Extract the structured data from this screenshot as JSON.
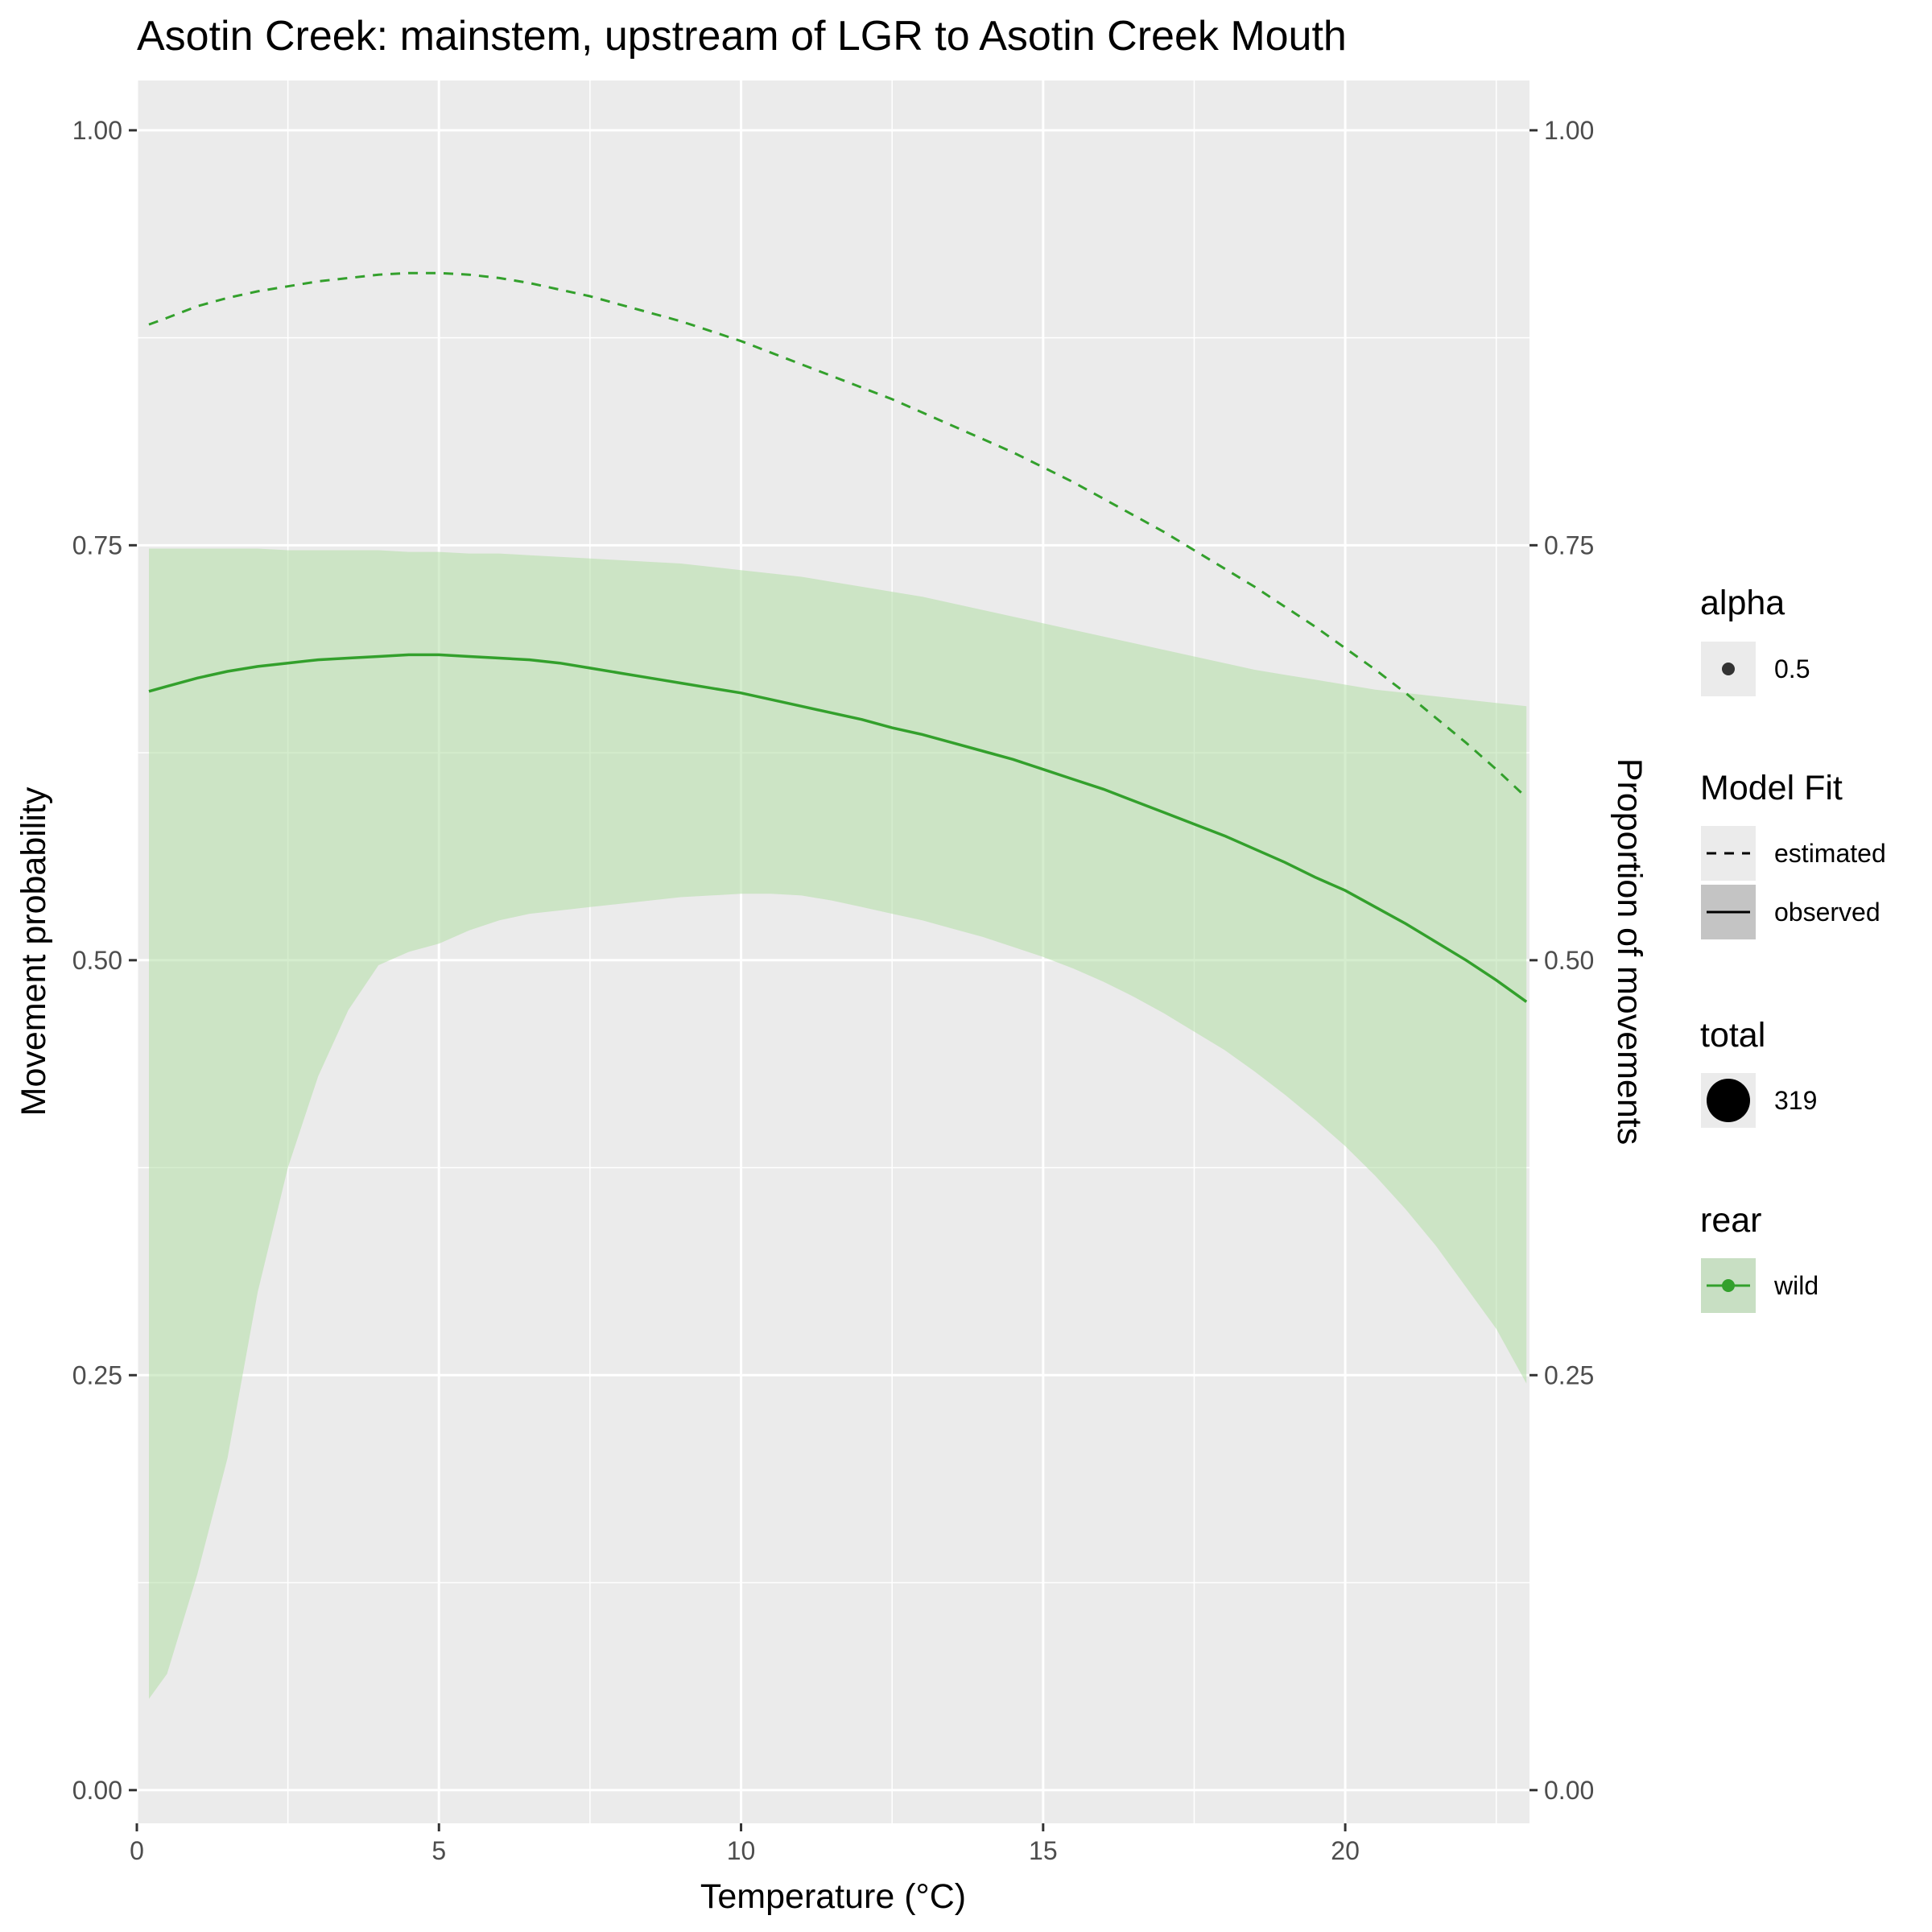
{
  "chart_data": {
    "type": "line",
    "title": "Asotin Creek: mainstem, upstream of LGR to Asotin Creek Mouth",
    "xlabel": "Temperature (°C)",
    "ylabel": "Movement probability",
    "ylabel_right": "Proportion of movements",
    "xlim": [
      0,
      23.05
    ],
    "ylim": [
      -0.02,
      1.03
    ],
    "x_ticks": [
      0,
      5,
      10,
      15,
      20
    ],
    "x_tick_labels": [
      "0",
      "5",
      "10",
      "15",
      "20"
    ],
    "y_ticks": [
      0,
      0.25,
      0.5,
      0.75,
      1
    ],
    "y_tick_labels": [
      "0.00",
      "0.25",
      "0.50",
      "0.75",
      "1.00"
    ],
    "y_ticks_right": [
      0,
      0.25,
      0.5,
      0.75,
      1
    ],
    "y_tick_labels_right": [
      "0.00",
      "0.25",
      "0.50",
      "0.75",
      "1.00"
    ],
    "grid": true,
    "legend_position": "right",
    "colors": {
      "panel": "#ebebeb",
      "grid": "#ffffff",
      "series": "#33a02c",
      "ribbon": "#b2dfa5"
    },
    "series": [
      {
        "name": "observed",
        "style": "solid",
        "x": [
          0.2,
          0.5,
          1,
          1.5,
          2,
          2.5,
          3,
          3.5,
          4,
          4.5,
          5,
          5.5,
          6,
          6.5,
          7,
          7.5,
          8,
          8.5,
          9,
          9.5,
          10,
          10.5,
          11,
          11.5,
          12,
          12.5,
          13,
          13.5,
          14,
          14.5,
          15,
          15.5,
          16,
          16.5,
          17,
          17.5,
          18,
          18.5,
          19,
          19.5,
          20,
          20.5,
          21,
          21.5,
          22,
          22.5,
          23
        ],
        "y": [
          0.662,
          0.665,
          0.67,
          0.674,
          0.677,
          0.679,
          0.681,
          0.682,
          0.683,
          0.684,
          0.684,
          0.683,
          0.682,
          0.681,
          0.679,
          0.676,
          0.673,
          0.67,
          0.667,
          0.664,
          0.661,
          0.657,
          0.653,
          0.649,
          0.645,
          0.64,
          0.636,
          0.631,
          0.626,
          0.621,
          0.615,
          0.609,
          0.603,
          0.596,
          0.589,
          0.582,
          0.575,
          0.567,
          0.559,
          0.55,
          0.542,
          0.532,
          0.522,
          0.511,
          0.5,
          0.488,
          0.475
        ],
        "ribbon_upper": [
          0.748,
          0.748,
          0.748,
          0.748,
          0.748,
          0.747,
          0.747,
          0.747,
          0.747,
          0.746,
          0.746,
          0.745,
          0.745,
          0.744,
          0.743,
          0.742,
          0.741,
          0.74,
          0.739,
          0.737,
          0.735,
          0.733,
          0.731,
          0.728,
          0.725,
          0.722,
          0.719,
          0.715,
          0.711,
          0.707,
          0.703,
          0.699,
          0.695,
          0.691,
          0.687,
          0.683,
          0.679,
          0.675,
          0.672,
          0.669,
          0.666,
          0.663,
          0.661,
          0.659,
          0.657,
          0.655,
          0.653
        ],
        "ribbon_lower": [
          0.055,
          0.07,
          0.13,
          0.2,
          0.3,
          0.375,
          0.43,
          0.47,
          0.497,
          0.505,
          0.51,
          0.518,
          0.524,
          0.528,
          0.53,
          0.532,
          0.534,
          0.536,
          0.538,
          0.539,
          0.54,
          0.54,
          0.539,
          0.536,
          0.532,
          0.528,
          0.524,
          0.519,
          0.514,
          0.508,
          0.502,
          0.495,
          0.487,
          0.478,
          0.468,
          0.457,
          0.446,
          0.433,
          0.419,
          0.404,
          0.388,
          0.37,
          0.35,
          0.328,
          0.303,
          0.278,
          0.245
        ]
      },
      {
        "name": "estimated",
        "style": "dashed",
        "x": [
          0.2,
          0.5,
          1,
          1.5,
          2,
          2.5,
          3,
          3.5,
          4,
          4.5,
          5,
          5.5,
          6,
          6.5,
          7,
          7.5,
          8,
          8.5,
          9,
          9.5,
          10,
          10.5,
          11,
          11.5,
          12,
          12.5,
          13,
          13.5,
          14,
          14.5,
          15,
          15.5,
          16,
          16.5,
          17,
          17.5,
          18,
          18.5,
          19,
          19.5,
          20,
          20.5,
          21,
          21.5,
          22,
          22.5,
          23
        ],
        "y": [
          0.883,
          0.887,
          0.894,
          0.899,
          0.903,
          0.906,
          0.909,
          0.911,
          0.913,
          0.914,
          0.914,
          0.913,
          0.911,
          0.908,
          0.904,
          0.9,
          0.895,
          0.89,
          0.885,
          0.879,
          0.873,
          0.866,
          0.859,
          0.852,
          0.845,
          0.838,
          0.83,
          0.822,
          0.814,
          0.806,
          0.797,
          0.788,
          0.778,
          0.768,
          0.758,
          0.747,
          0.736,
          0.725,
          0.713,
          0.701,
          0.688,
          0.675,
          0.661,
          0.646,
          0.631,
          0.615,
          0.598
        ]
      }
    ],
    "legend": [
      {
        "title": "alpha",
        "items": [
          {
            "label": "0.5",
            "key": "point-small"
          }
        ]
      },
      {
        "title": "Model Fit",
        "items": [
          {
            "label": "estimated",
            "key": "line-dashed"
          },
          {
            "label": "observed",
            "key": "line-solid-shaded"
          }
        ]
      },
      {
        "title": "total",
        "items": [
          {
            "label": "319",
            "key": "point-large"
          }
        ]
      },
      {
        "title": "rear",
        "items": [
          {
            "label": "wild",
            "key": "line-point-green"
          }
        ]
      }
    ]
  }
}
